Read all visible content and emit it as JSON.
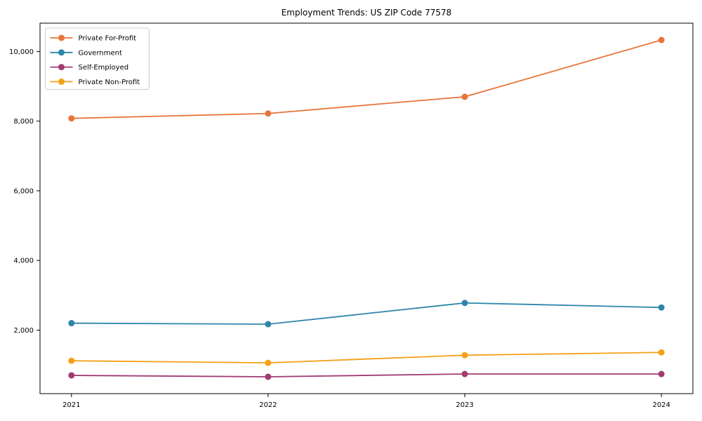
{
  "chart_data": {
    "type": "line",
    "title": "Employment Trends: US ZIP Code 77578",
    "xlabel": "",
    "ylabel": "",
    "x": [
      2021,
      2022,
      2023,
      2024
    ],
    "x_tick_labels": [
      "2021",
      "2022",
      "2023",
      "2024"
    ],
    "y_ticks": [
      2000,
      4000,
      6000,
      8000,
      10000
    ],
    "y_tick_labels": [
      "2,000",
      "4,000",
      "6,000",
      "8,000",
      "10,000"
    ],
    "xlim": [
      2020.84,
      2024.16
    ],
    "ylim": [
      176,
      10814
    ],
    "grid": false,
    "legend_position": "upper-left",
    "marker": "circle",
    "line_width": 1.8,
    "marker_radius": 4.5,
    "background_color": "#ffffff",
    "axis_color": "#000000",
    "legend_border_color": "#cccccc",
    "series": [
      {
        "name": "Private For-Profit",
        "color": "#e8743b",
        "values": [
          8080,
          8220,
          8700,
          10330
        ]
      },
      {
        "name": "Government",
        "color": "#2e86ab",
        "values": [
          2200,
          2170,
          2780,
          2650
        ]
      },
      {
        "name": "Self-Employed",
        "color": "#a23b72",
        "values": [
          700,
          660,
          740,
          740
        ]
      },
      {
        "name": "Private Non-Profit",
        "color": "#f5a017",
        "values": [
          1120,
          1060,
          1280,
          1360
        ]
      }
    ]
  }
}
